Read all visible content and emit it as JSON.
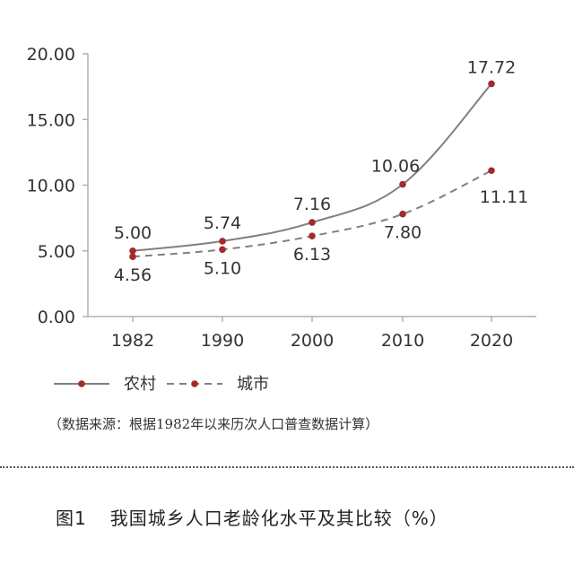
{
  "chart_data": {
    "type": "line",
    "categories": [
      "1982",
      "1990",
      "2000",
      "2010",
      "2020"
    ],
    "ylim": [
      0,
      20
    ],
    "yticks": [
      "0.00",
      "5.00",
      "10.00",
      "15.00",
      "20.00"
    ],
    "series": [
      {
        "name": "农村",
        "style": "solid",
        "values": [
          5.0,
          5.74,
          7.16,
          10.06,
          17.72
        ],
        "labels": [
          "5.00",
          "5.74",
          "7.16",
          "10.06",
          "17.72"
        ],
        "label_position": [
          "above",
          "above",
          "above",
          "above",
          "above"
        ]
      },
      {
        "name": "城市",
        "style": "dashed",
        "values": [
          4.56,
          5.1,
          6.13,
          7.8,
          11.11
        ],
        "labels": [
          "4.56",
          "5.10",
          "6.13",
          "7.80",
          "11.11"
        ],
        "label_position": [
          "below",
          "below",
          "below",
          "below",
          "below"
        ]
      }
    ],
    "legend_placement": "bottom-left",
    "grid": false
  },
  "colors": {
    "line": "#808080",
    "marker": "#a52a2a",
    "axis": "#b0b0b0"
  },
  "source_note": "（数据来源：根据1982年以来历次人口普查数据计算）",
  "caption": {
    "figure_number": "图1",
    "title": "我国城乡人口老龄化水平及其比较（%）"
  }
}
